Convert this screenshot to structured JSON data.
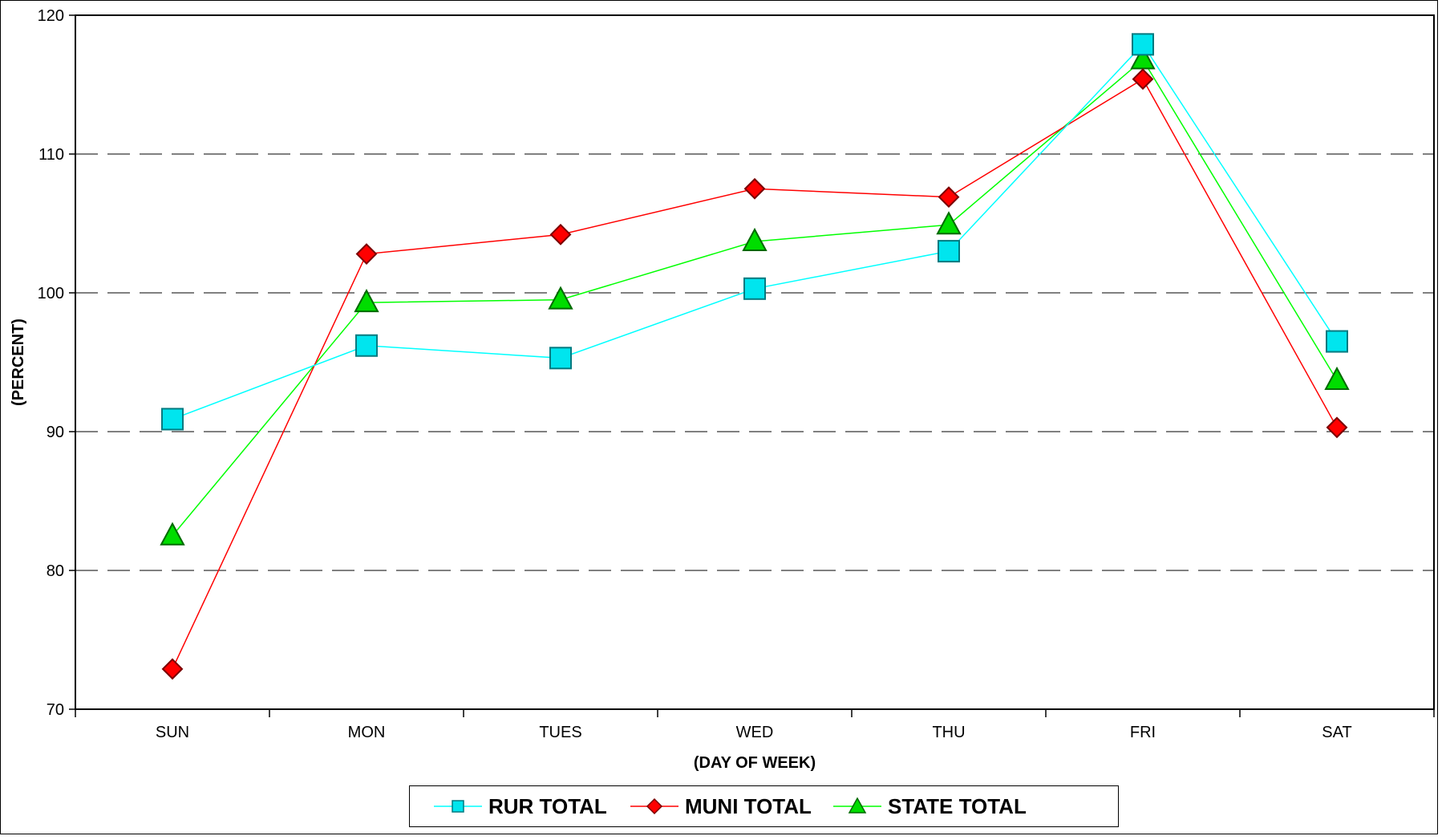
{
  "chart_data": {
    "type": "line",
    "title": "",
    "xlabel": "(DAY OF WEEK)",
    "ylabel": "(PERCENT)",
    "categories": [
      "SUN",
      "MON",
      "TUES",
      "WED",
      "THU",
      "FRI",
      "SAT"
    ],
    "ylim": [
      70,
      120
    ],
    "yticks": [
      70,
      80,
      90,
      100,
      110,
      120
    ],
    "grid": "horizontal dashed",
    "legend_position": "bottom",
    "series": [
      {
        "name": "RUR TOTAL",
        "color": "#00e5ee",
        "line_color": "#00ffff",
        "marker": "square",
        "values": [
          90.9,
          96.2,
          95.3,
          100.3,
          103.0,
          117.9,
          96.5
        ]
      },
      {
        "name": "MUNI TOTAL",
        "color": "#ff0000",
        "line_color": "#ff0000",
        "marker": "diamond",
        "values": [
          72.9,
          102.8,
          104.2,
          107.5,
          106.9,
          115.4,
          90.3
        ]
      },
      {
        "name": "STATE TOTAL",
        "color": "#00dd00",
        "line_color": "#00ff00",
        "marker": "triangle",
        "values": [
          82.5,
          99.3,
          99.5,
          103.7,
          104.9,
          116.8,
          93.7
        ]
      }
    ]
  }
}
